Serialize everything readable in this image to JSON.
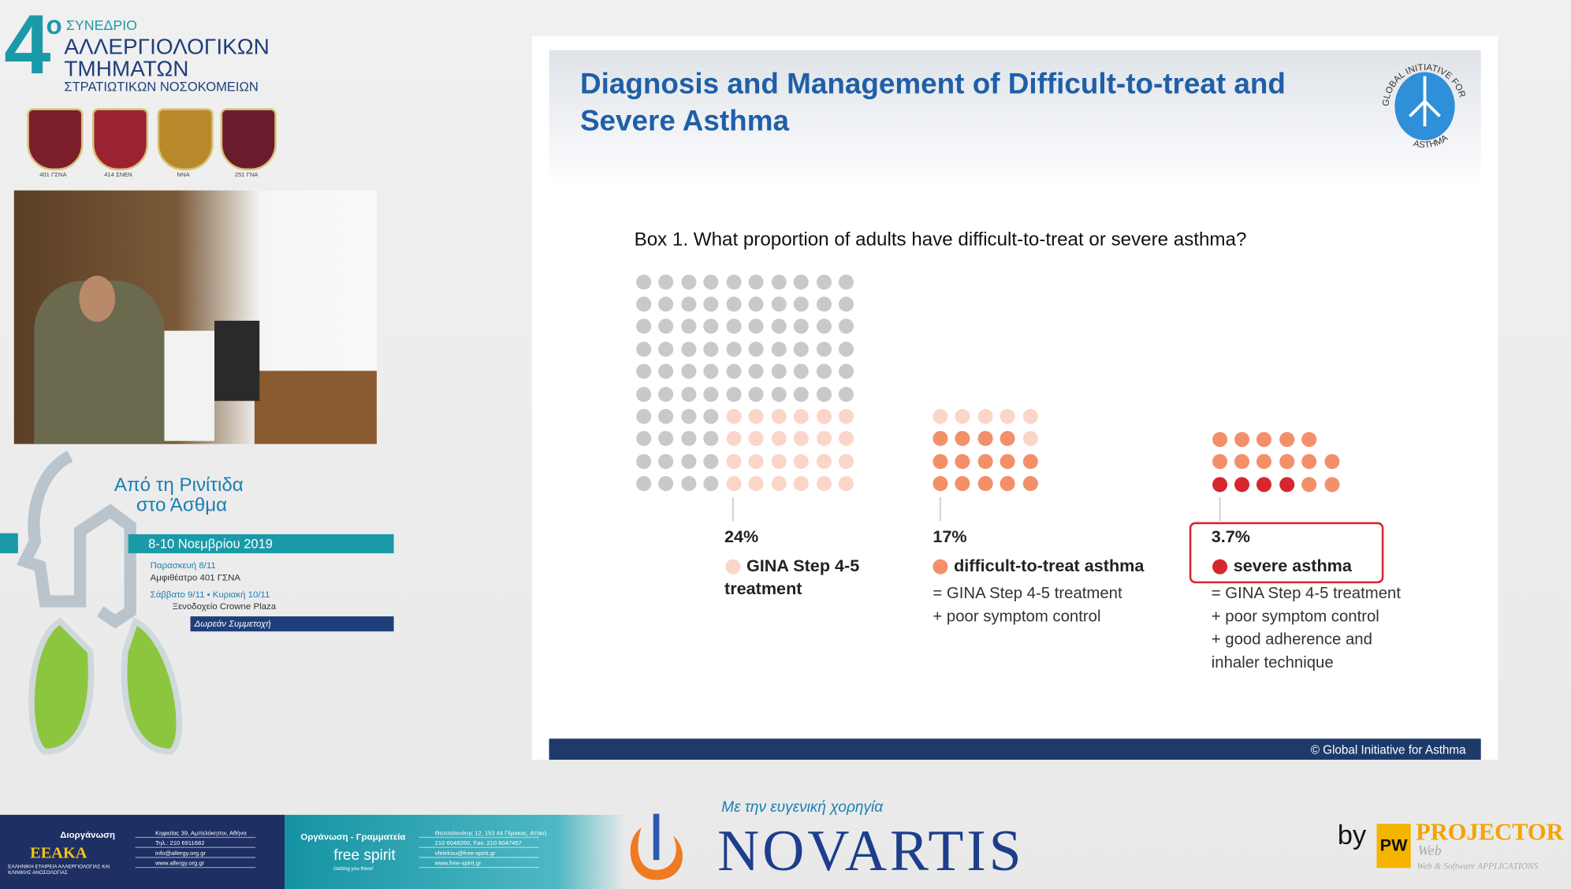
{
  "header": {
    "number": "4",
    "superscript": "ο",
    "line1": "ΣΥΝΕΔΡΙΟ",
    "line2": "ΑΛΛΕΡΓΙΟΛΟΓΙΚΩΝ",
    "line3": "ΤΜΗΜΑΤΩΝ",
    "line4": "ΣΤΡΑΤΙΩΤΙΚΩΝ ΝΟΣΟΚΟΜΕΙΩΝ"
  },
  "crests": [
    "401 ΓΣΝΑ",
    "414 ΣΝΕΝ",
    "ΝΝΑ",
    "251 ΓΝΑ"
  ],
  "poster": {
    "title1": "Από τη Ρινίτιδα",
    "title2": "στο Άσθμα",
    "dates": "8-10 Νοεμβρίου 2019",
    "day1": "Παρασκευή 8/11",
    "venue1": "Αμφιθέατρο 401 ΓΣΝΑ",
    "day2": "Σάββατο 9/11 • Κυριακή 10/11",
    "venue2": "Ξενοδοχείο Crowne Plaza",
    "free": "Δωρεάν Συμμετοχή"
  },
  "slide": {
    "title": [
      "Diagnosis and Management of Difficult-to-treat and",
      "Severe Asthma"
    ],
    "logo": {
      "top": "GLOBAL INITIATIVE FOR",
      "bottom": "ASTHMA"
    },
    "question": "Box 1. What proportion of adults have difficult-to-treat or severe asthma?",
    "groups": [
      {
        "percent": "24%",
        "label": "GINA Step 4-5",
        "label2": "treatment",
        "description": []
      },
      {
        "percent": "17%",
        "label": "difficult-to-treat asthma",
        "label2": "",
        "description": [
          "= GINA Step 4-5 treatment",
          "+ poor symptom control"
        ]
      },
      {
        "percent": "3.7%",
        "label": "severe asthma",
        "label2": "",
        "description": [
          "= GINA Step 4-5 treatment",
          "+ poor symptom control",
          "+ good adherence and",
          "inhaler technique"
        ]
      }
    ],
    "copyright": "© Global Initiative for Asthma"
  },
  "footer": {
    "organizer": "Διοργάνωση",
    "org_name": "ΕΕΑΚΑ",
    "org_sub": "ΕΛΛΗΝΙΚΗ ΕΤΑΙΡΕΙΑ ΑΛΛΕΡΓΙΟΛΟΓΙΑΣ ΚΑΙ ΚΛΙΝΙΚΗΣ ΑΝΟΣΟΛΟΓΙΑΣ",
    "org_contact": [
      "Κηφισίας 39, Αμπελόκηποι, Αθήνα",
      "Τηλ.: 210 6911682",
      "info@allergy.org.gr",
      "www.allergy.org.gr"
    ],
    "secretariat": "Οργάνωση - Γραμματεία",
    "sec_name": "free spirit",
    "sec_tagline": "Getting you there!",
    "sec_contact": [
      "Θεσσαλονίκης 12, 153 44 Γέρακας, Αττική",
      "210 6048260, Fax: 210 6047457",
      "vfelekou@free-spirit.gr",
      "www.free-spirit.gr"
    ]
  },
  "sponsor": {
    "caption": "Με την ευγενική χορηγία",
    "name": "NOVARTIS"
  },
  "credit": {
    "by": "by",
    "logo": "PW",
    "name": "PROJECTOR",
    "sub": "Web",
    "tagline": "Web & Software APPLICATIONS"
  }
}
